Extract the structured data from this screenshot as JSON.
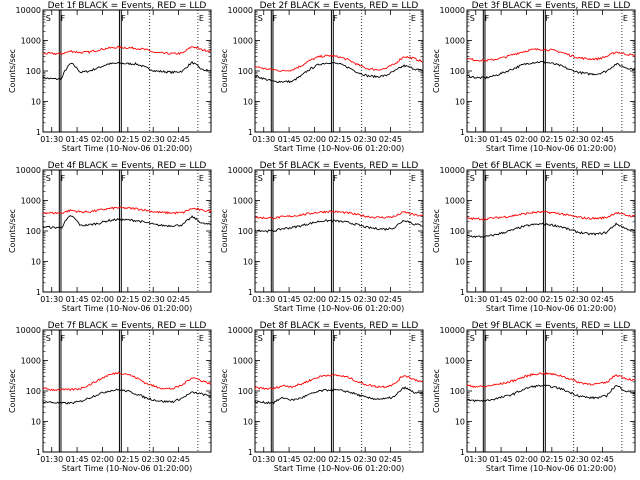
{
  "chart_data": [
    {
      "type": "line",
      "title": "Det 1f BLACK = Events, RED = LLD",
      "xlabel": "Start Time (10-Nov-06 01:20:00)",
      "ylabel": "Counts/sec",
      "yscale": "log",
      "ylim": [
        1,
        10000
      ],
      "x_ticks": [
        "01:30",
        "01:45",
        "02:00",
        "02:15",
        "02:30",
        "02:45"
      ],
      "y_ticks": [
        "1",
        "10",
        "100",
        "1000",
        "10000"
      ],
      "markers": [
        "S",
        "F",
        "F",
        "E"
      ],
      "series": [
        {
          "color": "#000000",
          "level": [
            60,
            55,
            55,
            180,
            90,
            100,
            130,
            170,
            180,
            175,
            170,
            130,
            100,
            95,
            90,
            100,
            190,
            110,
            100
          ]
        },
        {
          "color": "#ff0000",
          "level": [
            380,
            370,
            370,
            450,
            400,
            420,
            500,
            560,
            600,
            580,
            560,
            500,
            400,
            380,
            370,
            380,
            640,
            500,
            450
          ]
        }
      ]
    },
    {
      "type": "line",
      "title": "Det 2f BLACK = Events, RED = LLD",
      "xlabel": "Start Time (10-Nov-06 01:20:00)",
      "ylabel": "Counts/sec",
      "yscale": "log",
      "ylim": [
        1,
        10000
      ],
      "x_ticks": [
        "01:30",
        "01:45",
        "02:00",
        "02:15",
        "02:30",
        "02:45"
      ],
      "y_ticks": [
        "1",
        "10",
        "100",
        "1000",
        "10000"
      ],
      "markers": [
        "S",
        "F",
        "F",
        "E"
      ],
      "series": [
        {
          "color": "#000000",
          "level": [
            70,
            55,
            45,
            45,
            45,
            70,
            120,
            170,
            190,
            170,
            130,
            90,
            70,
            65,
            70,
            100,
            150,
            120,
            100
          ]
        },
        {
          "color": "#ff0000",
          "level": [
            140,
            120,
            110,
            100,
            110,
            150,
            230,
            300,
            320,
            290,
            230,
            160,
            120,
            110,
            120,
            170,
            300,
            260,
            200
          ]
        }
      ]
    },
    {
      "type": "line",
      "title": "Det 3f BLACK = Events, RED = LLD",
      "xlabel": "Start Time (10-Nov-06 01:20:00)",
      "ylabel": "Counts/sec",
      "yscale": "log",
      "ylim": [
        1,
        10000
      ],
      "x_ticks": [
        "01:30",
        "01:45",
        "02:00",
        "02:15",
        "02:30",
        "02:45"
      ],
      "y_ticks": [
        "1",
        "10",
        "100",
        "1000",
        "10000"
      ],
      "markers": [
        "S",
        "F",
        "F",
        "E"
      ],
      "series": [
        {
          "color": "#000000",
          "level": [
            70,
            60,
            60,
            70,
            90,
            120,
            160,
            190,
            200,
            180,
            150,
            110,
            90,
            80,
            80,
            100,
            170,
            130,
            110
          ]
        },
        {
          "color": "#ff0000",
          "level": [
            250,
            230,
            220,
            240,
            280,
            350,
            430,
            500,
            520,
            490,
            420,
            330,
            270,
            250,
            250,
            300,
            420,
            360,
            320
          ]
        }
      ]
    },
    {
      "type": "line",
      "title": "Det 4f BLACK = Events, RED = LLD",
      "xlabel": "Start Time (10-Nov-06 01:20:00)",
      "ylabel": "Counts/sec",
      "yscale": "log",
      "ylim": [
        1,
        10000
      ],
      "x_ticks": [
        "01:30",
        "01:45",
        "02:00",
        "02:15",
        "02:30",
        "02:45"
      ],
      "y_ticks": [
        "1",
        "10",
        "100",
        "1000",
        "10000"
      ],
      "markers": [
        "S",
        "F",
        "F",
        "E"
      ],
      "series": [
        {
          "color": "#000000",
          "level": [
            140,
            130,
            130,
            320,
            150,
            160,
            180,
            220,
            240,
            230,
            220,
            190,
            160,
            150,
            150,
            160,
            290,
            180,
            160
          ]
        },
        {
          "color": "#ff0000",
          "level": [
            400,
            390,
            390,
            480,
            420,
            430,
            480,
            540,
            580,
            560,
            540,
            480,
            420,
            400,
            390,
            400,
            550,
            480,
            450
          ]
        }
      ]
    },
    {
      "type": "line",
      "title": "Det 5f BLACK = Events, RED = LLD",
      "xlabel": "Start Time (10-Nov-06 01:20:00)",
      "ylabel": "Counts/sec",
      "yscale": "log",
      "ylim": [
        1,
        10000
      ],
      "x_ticks": [
        "01:30",
        "01:45",
        "02:00",
        "02:15",
        "02:30",
        "02:45"
      ],
      "y_ticks": [
        "1",
        "10",
        "100",
        "1000",
        "10000"
      ],
      "markers": [
        "S",
        "F",
        "F",
        "E"
      ],
      "series": [
        {
          "color": "#000000",
          "level": [
            110,
            100,
            100,
            120,
            130,
            150,
            180,
            210,
            220,
            210,
            190,
            160,
            130,
            120,
            115,
            130,
            230,
            170,
            150
          ]
        },
        {
          "color": "#ff0000",
          "level": [
            280,
            270,
            270,
            290,
            310,
            340,
            380,
            420,
            440,
            420,
            390,
            340,
            300,
            280,
            280,
            300,
            420,
            340,
            310
          ]
        }
      ]
    },
    {
      "type": "line",
      "title": "Det 6f BLACK = Events, RED = LLD",
      "xlabel": "Start Time (10-Nov-06 01:20:00)",
      "ylabel": "Counts/sec",
      "yscale": "log",
      "ylim": [
        1,
        10000
      ],
      "x_ticks": [
        "01:30",
        "01:45",
        "02:00",
        "02:15",
        "02:30",
        "02:45"
      ],
      "y_ticks": [
        "1",
        "10",
        "100",
        "1000",
        "10000"
      ],
      "markers": [
        "S",
        "F",
        "F",
        "E"
      ],
      "series": [
        {
          "color": "#000000",
          "level": [
            70,
            65,
            65,
            75,
            90,
            110,
            140,
            160,
            170,
            160,
            140,
            110,
            90,
            80,
            80,
            90,
            170,
            120,
            100
          ]
        },
        {
          "color": "#ff0000",
          "level": [
            260,
            250,
            250,
            270,
            290,
            320,
            360,
            400,
            420,
            400,
            370,
            320,
            280,
            260,
            260,
            280,
            400,
            330,
            300
          ]
        }
      ]
    },
    {
      "type": "line",
      "title": "Det 7f BLACK = Events, RED = LLD",
      "xlabel": "Start Time (10-Nov-06 01:20:00)",
      "ylabel": "Counts/sec",
      "yscale": "log",
      "ylim": [
        1,
        10000
      ],
      "x_ticks": [
        "01:30",
        "01:45",
        "02:00",
        "02:15",
        "02:30",
        "02:45"
      ],
      "y_ticks": [
        "1",
        "10",
        "100",
        "1000",
        "10000"
      ],
      "markers": [
        "S",
        "F",
        "F",
        "E"
      ],
      "series": [
        {
          "color": "#000000",
          "level": [
            45,
            42,
            40,
            40,
            45,
            60,
            80,
            100,
            110,
            100,
            80,
            60,
            50,
            45,
            45,
            60,
            90,
            80,
            65
          ]
        },
        {
          "color": "#ff0000",
          "level": [
            120,
            110,
            110,
            110,
            120,
            160,
            230,
            330,
            400,
            360,
            270,
            180,
            140,
            120,
            120,
            160,
            280,
            220,
            170
          ]
        }
      ]
    },
    {
      "type": "line",
      "title": "Det 8f BLACK = Events, RED = LLD",
      "xlabel": "Start Time (10-Nov-06 01:20:00)",
      "ylabel": "Counts/sec",
      "yscale": "log",
      "ylim": [
        1,
        10000
      ],
      "x_ticks": [
        "01:30",
        "01:45",
        "02:00",
        "02:15",
        "02:30",
        "02:45"
      ],
      "y_ticks": [
        "1",
        "10",
        "100",
        "1000",
        "10000"
      ],
      "markers": [
        "S",
        "F",
        "F",
        "E"
      ],
      "series": [
        {
          "color": "#000000",
          "level": [
            45,
            42,
            42,
            60,
            50,
            60,
            80,
            100,
            110,
            105,
            95,
            75,
            60,
            55,
            55,
            65,
            130,
            90,
            80
          ]
        },
        {
          "color": "#ff0000",
          "level": [
            130,
            120,
            120,
            150,
            140,
            170,
            230,
            300,
            340,
            320,
            280,
            200,
            160,
            140,
            140,
            170,
            330,
            240,
            200
          ]
        }
      ]
    },
    {
      "type": "line",
      "title": "Det 9f BLACK = Events, RED = LLD",
      "xlabel": "Start Time (10-Nov-06 01:20:00)",
      "ylabel": "Counts/sec",
      "yscale": "log",
      "ylim": [
        1,
        10000
      ],
      "x_ticks": [
        "01:30",
        "01:45",
        "02:00",
        "02:15",
        "02:30",
        "02:45"
      ],
      "y_ticks": [
        "1",
        "10",
        "100",
        "1000",
        "10000"
      ],
      "markers": [
        "S",
        "F",
        "F",
        "E"
      ],
      "series": [
        {
          "color": "#000000",
          "level": [
            50,
            48,
            48,
            55,
            65,
            80,
            110,
            140,
            150,
            140,
            120,
            90,
            70,
            60,
            60,
            70,
            150,
            100,
            85
          ]
        },
        {
          "color": "#ff0000",
          "level": [
            150,
            140,
            140,
            160,
            180,
            220,
            280,
            350,
            380,
            360,
            320,
            250,
            190,
            170,
            170,
            190,
            340,
            260,
            220
          ]
        }
      ]
    }
  ]
}
